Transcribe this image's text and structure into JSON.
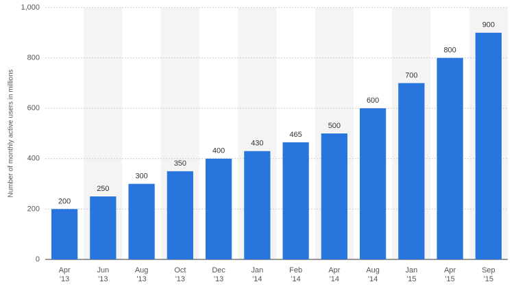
{
  "chart_data": {
    "type": "bar",
    "y_label": "Number of monthly active users in millions",
    "categories": [
      "Apr '13",
      "Jun '13",
      "Aug '13",
      "Oct '13",
      "Dec '13",
      "Jan '14",
      "Feb '14",
      "Apr '14",
      "Aug '14",
      "Jan '15",
      "Apr '15",
      "Sep '15"
    ],
    "values": [
      200,
      250,
      300,
      350,
      400,
      430,
      465,
      500,
      600,
      700,
      800,
      900
    ],
    "color": "#2876dd",
    "ylim": [
      0,
      1000
    ],
    "yticks": [
      0,
      200,
      400,
      600,
      800,
      {
        "value": 1000,
        "label": "1,000"
      }
    ],
    "grid": true
  }
}
